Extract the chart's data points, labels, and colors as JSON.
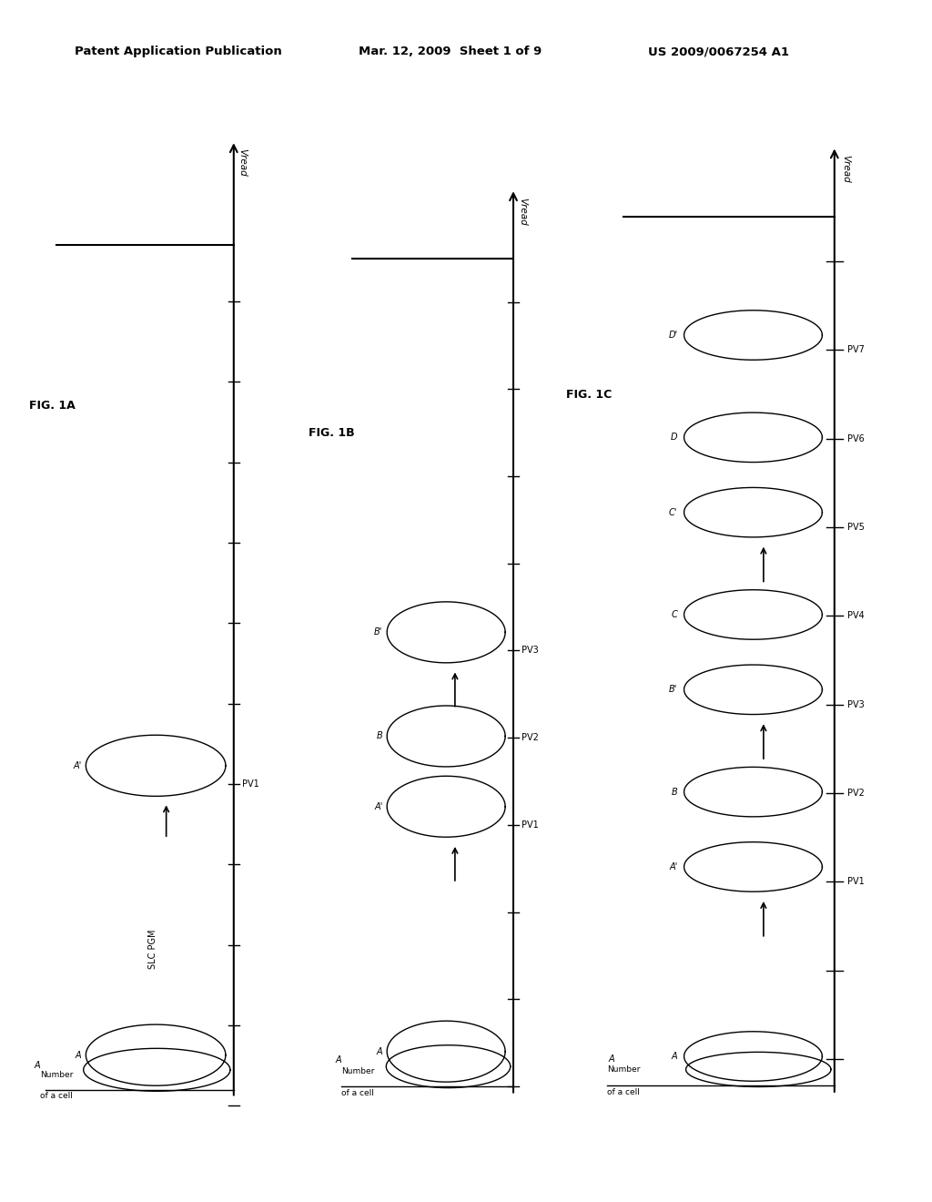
{
  "header_left": "Patent Application Publication",
  "header_center": "Mar. 12, 2009  Sheet 1 of 9",
  "header_right": "US 2009/0067254 A1",
  "background_color": "#ffffff",
  "panels": [
    {
      "label": "FIG. 1A",
      "slc_pgm": true,
      "pv_labels": [
        "PV1"
      ],
      "states": [
        {
          "name": "A",
          "pv_idx": -1,
          "is_primed": false
        },
        {
          "name": "A'",
          "pv_idx": 0,
          "is_primed": true
        }
      ],
      "arrows_at": [
        0
      ],
      "n_extra_ticks": 8
    },
    {
      "label": "FIG. 1B",
      "slc_pgm": false,
      "pv_labels": [
        "PV1",
        "PV2",
        "PV3"
      ],
      "states": [
        {
          "name": "A",
          "pv_idx": -1,
          "is_primed": false
        },
        {
          "name": "A'",
          "pv_idx": 0,
          "is_primed": true
        },
        {
          "name": "B",
          "pv_idx": 1,
          "is_primed": false
        },
        {
          "name": "B'",
          "pv_idx": 2,
          "is_primed": true
        }
      ],
      "arrows_at": [
        0,
        2
      ],
      "n_extra_ticks": 6
    },
    {
      "label": "FIG. 1C",
      "slc_pgm": false,
      "pv_labels": [
        "PV1",
        "PV2",
        "PV3",
        "PV4",
        "PV5",
        "PV6",
        "PV7"
      ],
      "states": [
        {
          "name": "A",
          "pv_idx": -1,
          "is_primed": false
        },
        {
          "name": "A'",
          "pv_idx": 0,
          "is_primed": true
        },
        {
          "name": "B",
          "pv_idx": 1,
          "is_primed": false
        },
        {
          "name": "B'",
          "pv_idx": 2,
          "is_primed": true
        },
        {
          "name": "C",
          "pv_idx": 3,
          "is_primed": false
        },
        {
          "name": "C'",
          "pv_idx": 4,
          "is_primed": true
        },
        {
          "name": "D",
          "pv_idx": 5,
          "is_primed": false
        },
        {
          "name": "D'",
          "pv_idx": 6,
          "is_primed": true
        }
      ],
      "arrows_at": [
        0,
        2,
        4
      ],
      "n_extra_ticks": 2
    }
  ]
}
